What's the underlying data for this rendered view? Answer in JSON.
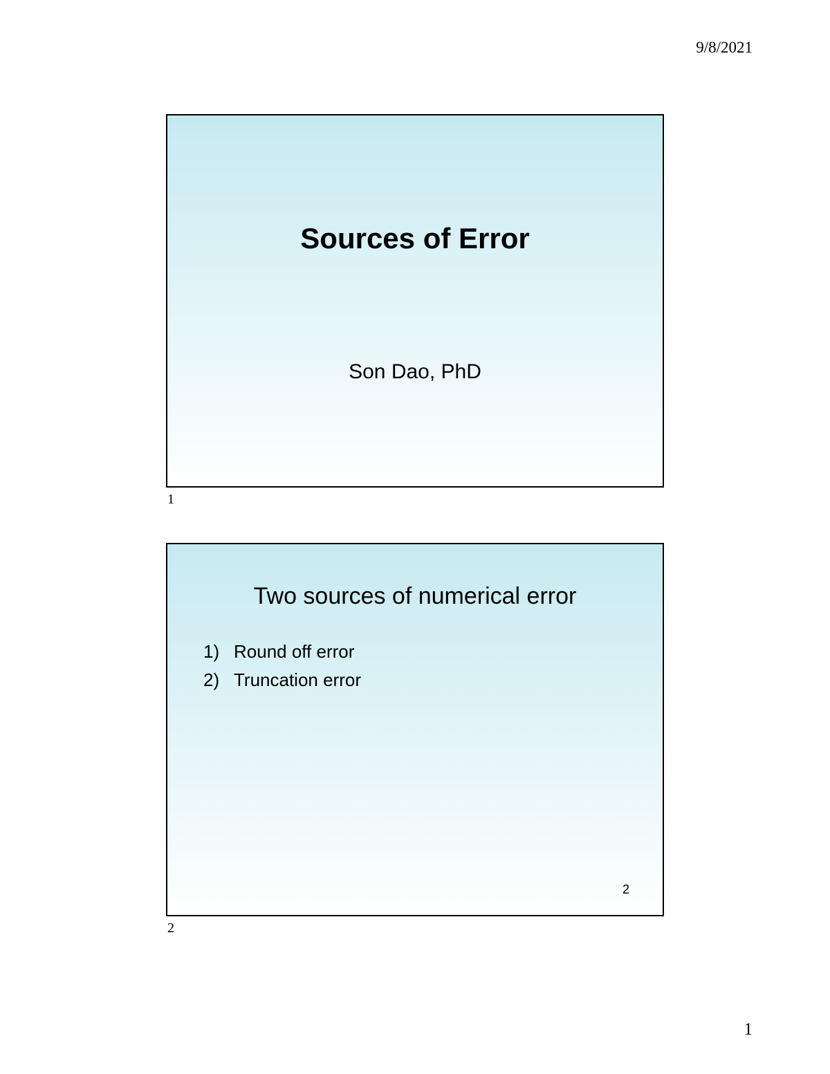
{
  "header": {
    "date": "9/8/2021"
  },
  "footer": {
    "page": "1"
  },
  "slides": [
    {
      "index_label": "1",
      "title": "Sources of Error",
      "author": "Son Dao, PhD"
    },
    {
      "index_label": "2",
      "heading": "Two sources of numerical error",
      "items": [
        {
          "num": "1)",
          "text": "Round off error"
        },
        {
          "num": "2)",
          "text": "Truncation error"
        }
      ],
      "inner_page": "2"
    }
  ],
  "style": {
    "page_bg": "#ffffff",
    "slide_border": "#000000",
    "gradient_top": "#c6eaf1",
    "gradient_bottom": "#ffffff",
    "text_color": "#000000",
    "title_fontsize_pt": 32,
    "author_fontsize_pt": 22,
    "heading_fontsize_pt": 26,
    "list_fontsize_pt": 20,
    "date_fontsize_pt": 17,
    "footer_fontsize_pt": 19,
    "slide_number_fontsize_pt": 15
  }
}
